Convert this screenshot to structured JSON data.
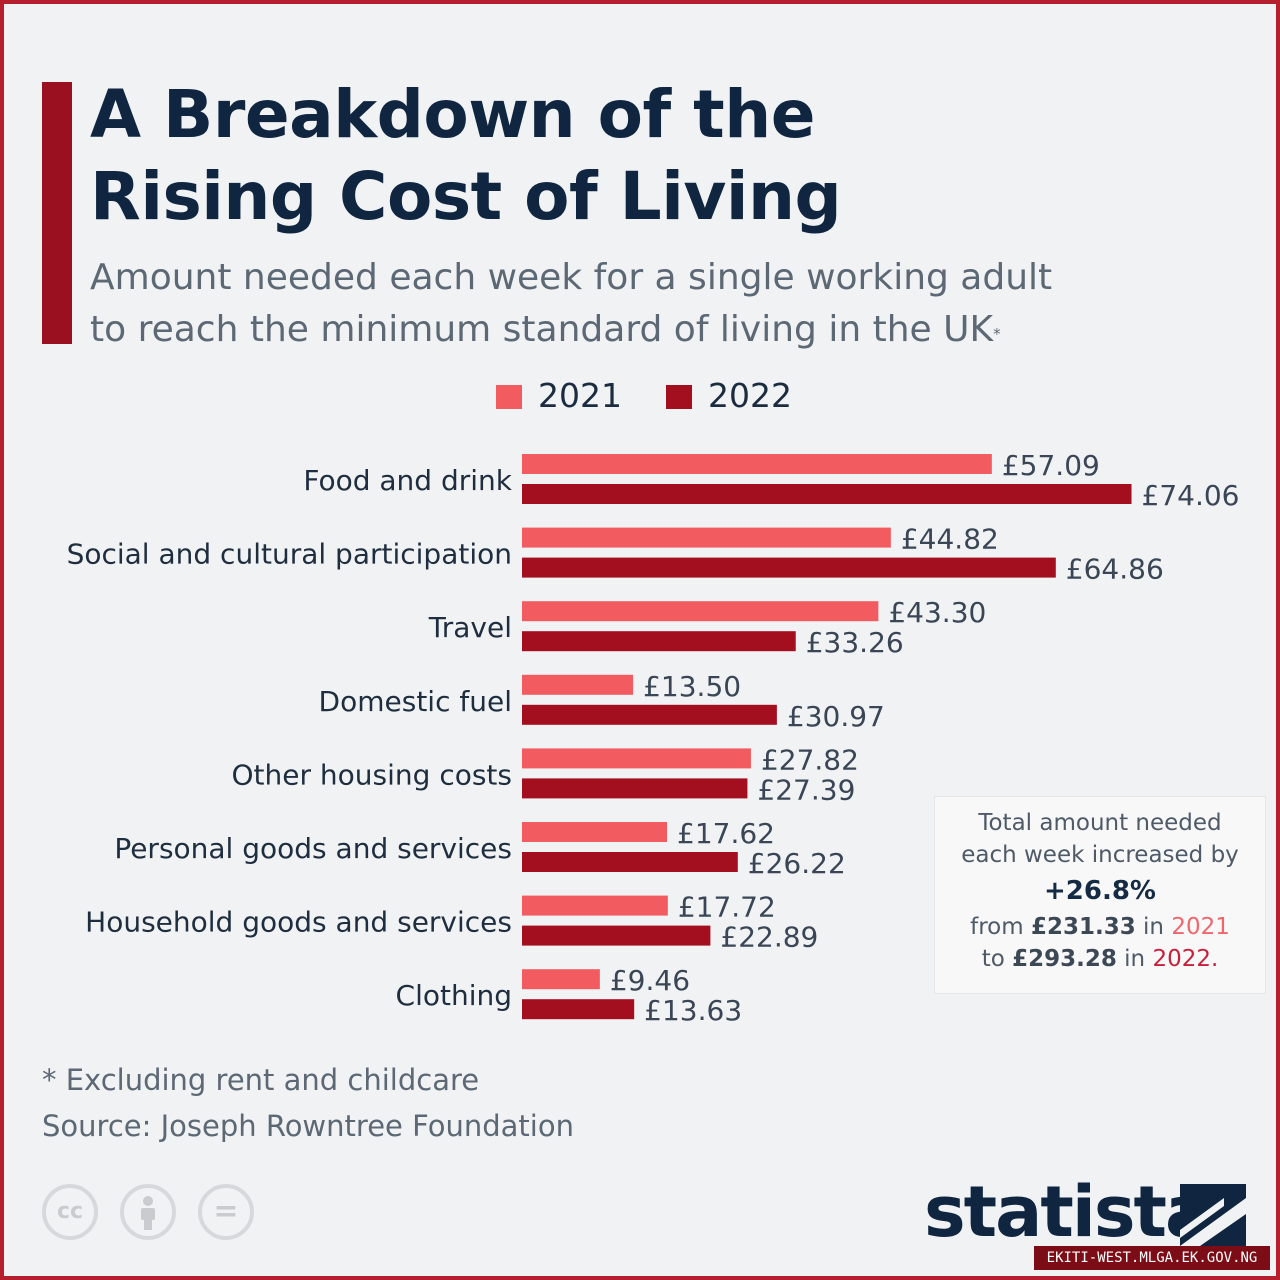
{
  "header": {
    "title_line1": "A Breakdown of the",
    "title_line2": "Rising Cost of Living",
    "subtitle_line1": "Amount needed each week for a single working adult",
    "subtitle_line2": "to reach the minimum standard of living in the UK",
    "subtitle_mark": "*"
  },
  "colors": {
    "s2021": "#f25c61",
    "s2022": "#a30f1f",
    "accent_bar": "#9a1021",
    "title": "#0f2540"
  },
  "chart_data": {
    "type": "bar",
    "orientation": "horizontal",
    "title": "A Breakdown of the Rising Cost of Living",
    "xlabel": "",
    "ylabel": "",
    "xlim": [
      0,
      80
    ],
    "grid": false,
    "legend_position": "top",
    "value_prefix": "£",
    "categories": [
      "Food and drink",
      "Social and cultural participation",
      "Travel",
      "Domestic fuel",
      "Other housing costs",
      "Personal goods and services",
      "Household goods and services",
      "Clothing"
    ],
    "series": [
      {
        "name": "2021",
        "color": "#f25c61",
        "values": [
          57.09,
          44.82,
          43.3,
          13.5,
          27.82,
          17.62,
          17.72,
          9.46
        ],
        "labels": [
          "£57.09",
          "£44.82",
          "£43.30",
          "£13.50",
          "£27.82",
          "£17.62",
          "£17.72",
          "£9.46"
        ]
      },
      {
        "name": "2022",
        "color": "#a30f1f",
        "values": [
          74.06,
          64.86,
          33.26,
          30.97,
          27.39,
          26.22,
          22.89,
          13.63
        ],
        "labels": [
          "£74.06",
          "£64.86",
          "£33.26",
          "£30.97",
          "£27.39",
          "£26.22",
          "£22.89",
          "£13.63"
        ]
      }
    ]
  },
  "summary": {
    "line1": "Total amount needed",
    "line2": "each week increased by",
    "pct": "+26.8%",
    "from_prefix": "from ",
    "from_value": "£231.33",
    "in_word": " in ",
    "from_year": "2021",
    "to_prefix": "to ",
    "to_value": "£293.28",
    "to_year": "2022",
    "to_end": "."
  },
  "footer": {
    "footnote": "* Excluding rent and childcare",
    "source": "Source: Joseph Rowntree Foundation",
    "cc_label": "cc",
    "eq_label": "="
  },
  "brand": {
    "name": "statista"
  },
  "watermark": {
    "text": "EKITI-WEST.MLGA.EK.GOV.NG"
  }
}
